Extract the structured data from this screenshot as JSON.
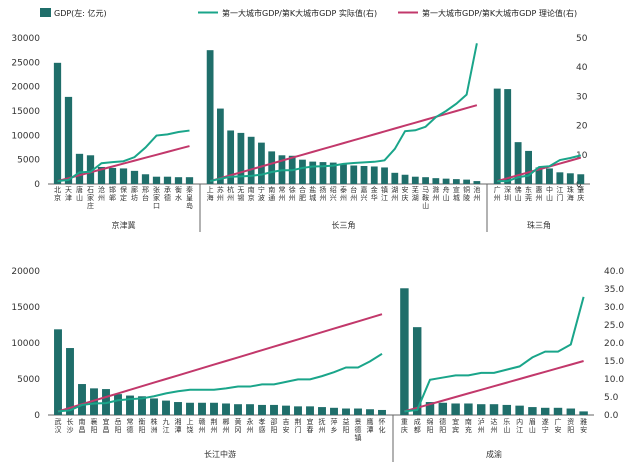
{
  "colors": {
    "bar": "#1f6e6a",
    "actual": "#1aa58a",
    "theory": "#c2386b",
    "axis": "#666666"
  },
  "legend": {
    "bar": "GDP(左: 亿元)",
    "actual": "第一大城市GDP/第K大城市GDP 实际值(右)",
    "theory": "第一大城市GDP/第K大城市GDP 理论值(右)"
  },
  "chart_data": [
    {
      "type": "bar",
      "yticks": [
        "30000",
        "25000",
        "20000",
        "15000",
        "10000",
        "5000",
        "0"
      ],
      "y2ticks": [
        "50",
        "40",
        "30",
        "20",
        "10",
        "0"
      ],
      "ylim": [
        0,
        30000
      ],
      "y2lim": [
        0,
        50
      ],
      "groups": [
        {
          "name": "京津冀",
          "categories": [
            "北京",
            "天津",
            "唐山",
            "石家庄",
            "沧州",
            "邯郸",
            "保定",
            "廊坊",
            "邢台",
            "张家口",
            "承德",
            "衡水",
            "秦皇岛"
          ],
          "values": [
            24900,
            17900,
            6200,
            5900,
            3500,
            3300,
            3200,
            2700,
            2000,
            1500,
            1500,
            1400,
            1400
          ],
          "actual": [
            1,
            1.4,
            4,
            4.2,
            7.1,
            7.5,
            7.8,
            9.2,
            12.5,
            16.6,
            17,
            17.8,
            18.3
          ],
          "theory": [
            1,
            2,
            3,
            4,
            5,
            6,
            7,
            8,
            9,
            10,
            11,
            12,
            13
          ]
        },
        {
          "name": "长三角",
          "categories": [
            "上海",
            "苏州",
            "杭州",
            "无锡",
            "南京",
            "宁波",
            "南通",
            "常州",
            "徐州",
            "合肥",
            "盐城",
            "扬州",
            "绍兴",
            "泰州",
            "台州",
            "嘉兴",
            "金华",
            "镇江",
            "湖州",
            "安庆",
            "芜湖",
            "马鞍山",
            "滁州",
            "舟山",
            "宣城",
            "铜陵",
            "池州"
          ],
          "values": [
            27500,
            15500,
            11000,
            10500,
            9700,
            8500,
            6700,
            5900,
            5800,
            5000,
            4600,
            4500,
            4400,
            4000,
            3800,
            3700,
            3600,
            3400,
            2300,
            1900,
            1500,
            1400,
            1200,
            1100,
            1000,
            900,
            600
          ],
          "actual": [
            1,
            1.8,
            2.5,
            2.6,
            2.8,
            3.2,
            4.1,
            4.7,
            4.7,
            5.5,
            6,
            6.1,
            6.3,
            6.9,
            7.2,
            7.4,
            7.6,
            8.1,
            12,
            18.1,
            18.4,
            19.6,
            22.9,
            25,
            27.5,
            30.6,
            48.2
          ],
          "theory": [
            1,
            2,
            3,
            4,
            5,
            6,
            7,
            8,
            9,
            10,
            11,
            12,
            13,
            14,
            15,
            16,
            17,
            18,
            19,
            20,
            21,
            22,
            23,
            24,
            25,
            26,
            27
          ]
        },
        {
          "name": "珠三角",
          "categories": [
            "广州",
            "深圳",
            "佛山",
            "东莞",
            "惠州",
            "中山",
            "江门",
            "珠海",
            "肇庆"
          ],
          "values": [
            19600,
            19500,
            8600,
            6800,
            3400,
            3200,
            2400,
            2200,
            2000
          ],
          "actual": [
            1,
            1,
            2.3,
            2.9,
            5.8,
            6.1,
            8.2,
            8.9,
            9.8
          ],
          "theory": [
            1,
            2,
            3,
            4,
            5,
            6,
            7,
            8,
            9
          ]
        }
      ]
    },
    {
      "type": "bar",
      "yticks": [
        "20000",
        "15000",
        "10000",
        "5000",
        "0"
      ],
      "y2ticks": [
        "40.0",
        "35.0",
        "30.0",
        "25.0",
        "20.0",
        "15.0",
        "10.0",
        "5.0",
        "0.0"
      ],
      "ylim": [
        0,
        20000
      ],
      "y2lim": [
        0,
        40
      ],
      "groups": [
        {
          "name": "长江中游",
          "categories": [
            "武汉",
            "长沙",
            "南昌",
            "襄阳",
            "宜昌",
            "岳阳",
            "常德",
            "衡阳",
            "株洲",
            "九江",
            "湘潭",
            "上饶",
            "赣州",
            "荆州",
            "郴州",
            "黄冈",
            "永州",
            "孝感",
            "邵阳",
            "吉安",
            "荆门",
            "宜春",
            "抚州",
            "萍乡",
            "益阳",
            "景德镇",
            "鹰潭",
            "怀化"
          ],
          "values": [
            11900,
            9300,
            4300,
            3700,
            3600,
            2900,
            2700,
            2600,
            2300,
            2000,
            1800,
            1700,
            1700,
            1700,
            1600,
            1500,
            1500,
            1400,
            1400,
            1300,
            1200,
            1200,
            1100,
            1000,
            900,
            900,
            800,
            700
          ],
          "actual": [
            1,
            1.3,
            2.8,
            3.2,
            3.3,
            4.1,
            4.4,
            4.6,
            5.2,
            6,
            6.6,
            7,
            7,
            7,
            7.4,
            7.9,
            7.9,
            8.5,
            8.5,
            9.2,
            9.9,
            9.9,
            10.8,
            11.9,
            13.2,
            13.2,
            14.9,
            17
          ],
          "theory": [
            1,
            2,
            3,
            4,
            5,
            6,
            7,
            8,
            9,
            10,
            11,
            12,
            13,
            14,
            15,
            16,
            17,
            18,
            19,
            20,
            21,
            22,
            23,
            24,
            25,
            26,
            27,
            28
          ]
        },
        {
          "name": "成渝",
          "categories": [
            "重庆",
            "成都",
            "绵阳",
            "德阳",
            "宜宾",
            "南充",
            "泸州",
            "达州",
            "乐山",
            "内江",
            "眉山",
            "遂宁",
            "广安",
            "资阳",
            "雅安"
          ],
          "values": [
            17600,
            12200,
            1800,
            1700,
            1600,
            1600,
            1500,
            1500,
            1400,
            1300,
            1100,
            1000,
            1000,
            900,
            500
          ],
          "actual": [
            1,
            1.4,
            9.8,
            10.4,
            11,
            11,
            11.7,
            11.7,
            12.6,
            13.5,
            16,
            17.6,
            17.6,
            19.6,
            32.8
          ],
          "theory": [
            1,
            2,
            3,
            4,
            5,
            6,
            7,
            8,
            9,
            10,
            11,
            12,
            13,
            14,
            15
          ]
        }
      ]
    }
  ]
}
